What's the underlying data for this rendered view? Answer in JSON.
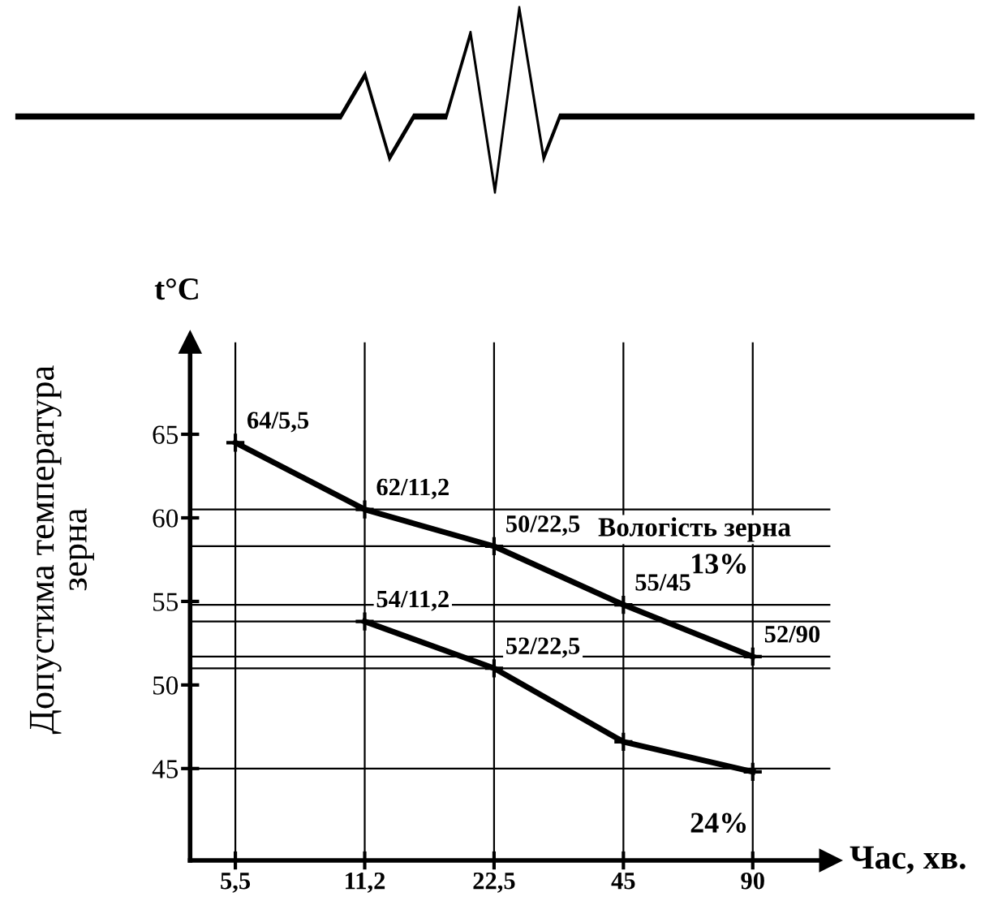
{
  "chart_data": {
    "type": "line",
    "xlabel": "Час, хв.",
    "ylabel": "Допустима температура\nзерна",
    "y2label": "t°C",
    "categories": [
      "5,5",
      "11,2",
      "22,5",
      "45",
      "90"
    ],
    "series": [
      {
        "name": "13%",
        "color": "#000000",
        "values": [
          64.5,
          60.5,
          58.3,
          54.8,
          51.7
        ]
      },
      {
        "name": "24%",
        "color": "#000000",
        "values": [
          null,
          53.8,
          51,
          46.6,
          44.8
        ]
      }
    ],
    "ylim": [
      39.5,
      70.5
    ],
    "yticks": [
      45,
      50,
      55,
      60,
      65
    ],
    "marker": "cross",
    "line_style": "solid",
    "grid": false,
    "legend": false,
    "ref_lines": [
      {
        "axis": "y",
        "value": 60.5,
        "color": "#000000"
      },
      {
        "axis": "y",
        "value": 58.3,
        "color": "#000000"
      },
      {
        "axis": "y",
        "value": 54.8,
        "color": "#000000"
      },
      {
        "axis": "y",
        "value": 53.8,
        "color": "#000000"
      },
      {
        "axis": "y",
        "value": 51.7,
        "color": "#000000"
      },
      {
        "axis": "y",
        "value": 51,
        "color": "#000000"
      },
      {
        "axis": "y",
        "value": 45,
        "color": "#000000"
      },
      {
        "axis": "x",
        "value": "5,5",
        "color": "#000000"
      },
      {
        "axis": "x",
        "value": "11,2",
        "color": "#000000"
      },
      {
        "axis": "x",
        "value": "22,5",
        "color": "#000000"
      },
      {
        "axis": "x",
        "value": "45",
        "color": "#000000"
      },
      {
        "axis": "x",
        "value": "90",
        "color": "#000000"
      }
    ],
    "annotations": [
      {
        "text": "64/5,5",
        "x": "5,5",
        "y": 64.5
      },
      {
        "text": "62/11,2",
        "x": "11,2",
        "y": 60.5
      },
      {
        "text": "50/22,5",
        "x": "22,5",
        "y": 58.3
      },
      {
        "text": "55/45",
        "x": "45",
        "y": 54.8
      },
      {
        "text": "52/90",
        "x": "90",
        "y": 51.7
      },
      {
        "text": "54/11,2",
        "x": "11,2",
        "y": 53.8
      },
      {
        "text": "52/22,5",
        "x": "22,5",
        "y": 51
      },
      "Вологість зерна"
    ]
  }
}
